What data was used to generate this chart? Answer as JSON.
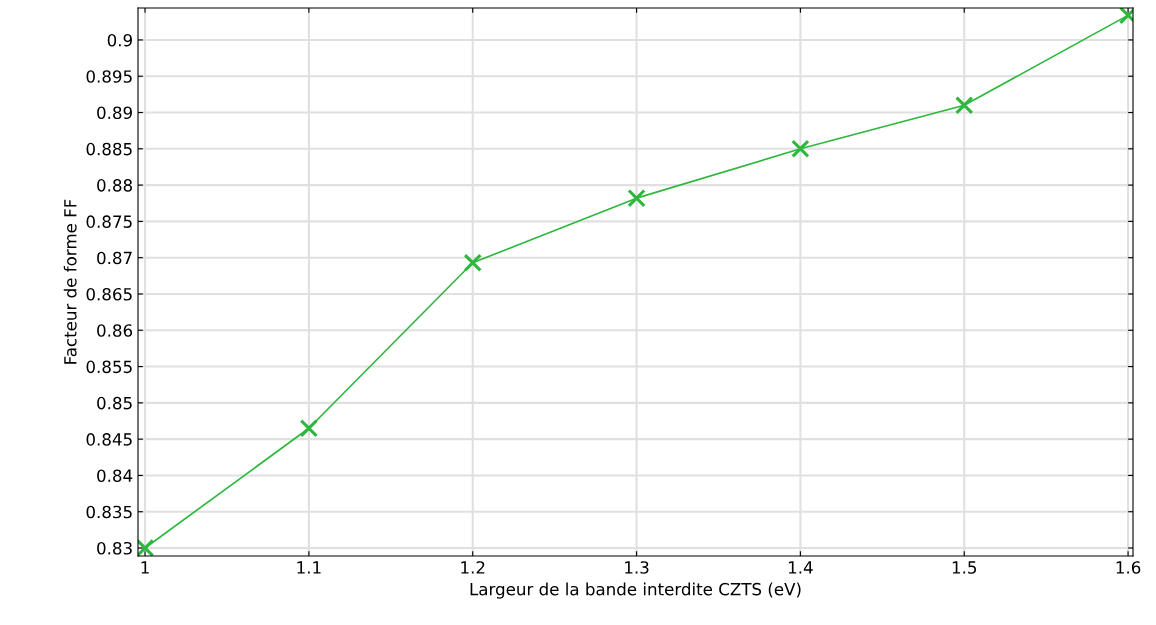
{
  "chart_data": {
    "type": "line",
    "xlabel": "Largeur de la bande interdite CZTS (eV)",
    "ylabel": "Facteur de forme FF",
    "x": [
      1,
      1.1,
      1.2,
      1.3,
      1.4,
      1.5,
      1.6
    ],
    "series": [
      {
        "color": "#2db83d",
        "values": [
          0.83,
          0.8465,
          0.8693,
          0.8782,
          0.885,
          0.891,
          0.9034
        ]
      }
    ],
    "xlim": [
      0.9957,
      1.603
    ],
    "xticks": [
      1,
      1.1,
      1.2,
      1.3,
      1.4,
      1.5,
      1.6
    ],
    "ylim": [
      0.8289,
      0.9044
    ],
    "yticks": [
      0.83,
      0.835,
      0.84,
      0.845,
      0.85,
      0.855,
      0.86,
      0.865,
      0.87,
      0.875,
      0.88,
      0.885,
      0.89,
      0.895,
      0.9
    ],
    "grid": true,
    "marker": "cross",
    "line_style": "solid",
    "legend": false
  }
}
